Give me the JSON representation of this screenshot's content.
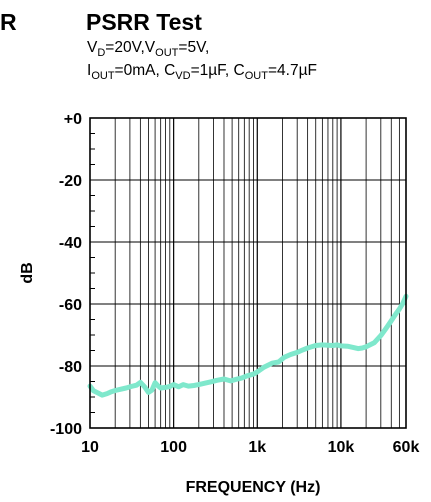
{
  "page": {
    "cropped_prefix": "R",
    "title": "PSRR Test",
    "cond1": {
      "v": "V",
      "d": "D",
      "mid": "=20V,V",
      "out": "OUT",
      "end": "=5V,"
    },
    "cond2": {
      "i": "I",
      "iout": "OUT",
      "a": "=0mA, C",
      "vd": "VD",
      "b": "=1µF, C",
      "cout": "OUT",
      "c": "=4.7µF"
    }
  },
  "chart_data": {
    "type": "line",
    "title": "PSRR Test",
    "xlabel": "FREQUENCY (Hz)",
    "ylabel": "dB",
    "x_scale": "log",
    "xlim": [
      10,
      60000
    ],
    "ylim": [
      -100,
      0
    ],
    "grid": true,
    "legend": "none",
    "x_ticks": [
      {
        "value": 10,
        "label": "10"
      },
      {
        "value": 100,
        "label": "100"
      },
      {
        "value": 1000,
        "label": "1k"
      },
      {
        "value": 10000,
        "label": "10k"
      },
      {
        "value": 60000,
        "label": "60k"
      }
    ],
    "y_ticks": [
      {
        "value": 0,
        "label": "+0"
      },
      {
        "value": -20,
        "label": "-20"
      },
      {
        "value": -40,
        "label": "-40"
      },
      {
        "value": -60,
        "label": "-60"
      },
      {
        "value": -80,
        "label": "-80"
      },
      {
        "value": -100,
        "label": "-100"
      }
    ],
    "line_color": "#7fe8cc",
    "series": [
      {
        "x": [
          10,
          11,
          12.5,
          14,
          16,
          18,
          20,
          23,
          27,
          31,
          36,
          40,
          45,
          50,
          55,
          60,
          65,
          70,
          80,
          90,
          100,
          115,
          130,
          150,
          175,
          200,
          240,
          280,
          330,
          400,
          480,
          560,
          650,
          750,
          900,
          1000,
          1200,
          1500,
          1800,
          2100,
          2500,
          3000,
          3500,
          4000,
          5000,
          6000,
          7000,
          8000,
          9000,
          10000,
          12000,
          14000,
          16000,
          18000,
          20000,
          25000,
          30000,
          35000,
          40000,
          45000,
          50000,
          55000,
          60000
        ],
        "y": [
          -86.5,
          -88.0,
          -88.7,
          -89.4,
          -88.9,
          -88.3,
          -87.9,
          -87.5,
          -87.1,
          -86.6,
          -86.2,
          -85.3,
          -86.7,
          -88.5,
          -87.8,
          -85.4,
          -86.4,
          -87.1,
          -86.9,
          -86.6,
          -86.0,
          -86.7,
          -86.0,
          -86.5,
          -86.3,
          -86.0,
          -85.5,
          -85.1,
          -84.6,
          -84.2,
          -84.8,
          -84.3,
          -83.9,
          -83.2,
          -82.6,
          -81.9,
          -80.4,
          -79.1,
          -78.7,
          -77.2,
          -76.3,
          -75.6,
          -74.8,
          -74.2,
          -73.4,
          -73.2,
          -73.3,
          -73.4,
          -73.2,
          -73.5,
          -73.6,
          -74.0,
          -74.4,
          -74.2,
          -73.8,
          -72.5,
          -70.2,
          -67.7,
          -65.4,
          -63.3,
          -61.6,
          -59.8,
          -57.5
        ]
      }
    ]
  }
}
